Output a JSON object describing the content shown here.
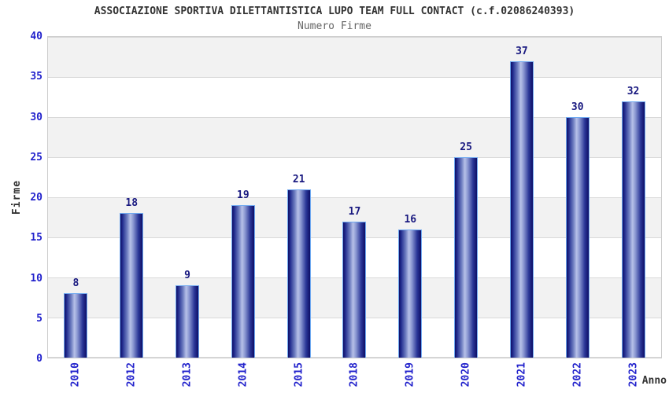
{
  "header": {
    "title": "ASSOCIAZIONE SPORTIVA DILETTANTISTICA LUPO TEAM FULL CONTACT (c.f.02086240393)",
    "subtitle": "Numero Firme"
  },
  "chart_data": {
    "type": "bar",
    "title": "ASSOCIAZIONE SPORTIVA DILETTANTISTICA LUPO TEAM FULL CONTACT (c.f.02086240393)",
    "subtitle": "Numero Firme",
    "categories": [
      "2010",
      "2012",
      "2013",
      "2014",
      "2015",
      "2018",
      "2019",
      "2020",
      "2021",
      "2022",
      "2023"
    ],
    "values": [
      8,
      18,
      9,
      19,
      21,
      17,
      16,
      25,
      37,
      30,
      32
    ],
    "xlabel": "Anno",
    "ylabel": "Firme",
    "ylim": [
      0,
      40
    ],
    "yticks": [
      0,
      5,
      10,
      15,
      20,
      25,
      30,
      35,
      40
    ],
    "grid": true,
    "legend": "none",
    "band_pattern": "alternating gray/white horizontal bands, gray band just below top gridline",
    "colors": {
      "tick_label": "#2222cc",
      "value_label": "#191980",
      "bar_dark": "#0e0e66",
      "bar_light": "#b7c1e8",
      "bar_border": "#6ea8f0",
      "band_gray": "#f2f2f2",
      "band_white": "#ffffff",
      "gridline": "#d9d9d9",
      "plot_border": "#cccccc",
      "title_color": "#333333",
      "subtitle_color": "#666666"
    }
  }
}
